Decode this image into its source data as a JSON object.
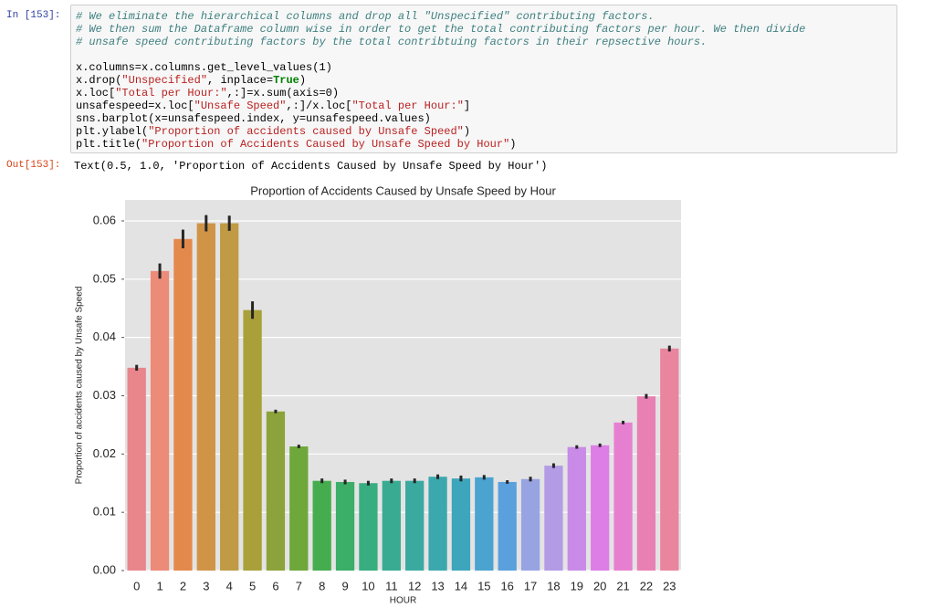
{
  "input_prompt": "In [153]:",
  "comment_lines": [
    "# We eliminate the hierarchical columns and drop all \"Unspecified\" contributing factors.",
    "# We then sum the Dataframe column wise in order to get the total contributing factors per hour. We then divide",
    "# unsafe speed contributing factors by the total contribtuing factors in their repsective hours."
  ],
  "code_lines": [
    [
      "x.columns=x.columns.get_level_values(1)"
    ],
    [
      "x.drop(",
      "\"Unspecified\"",
      ", inplace=",
      "True",
      ")"
    ],
    [
      "x.loc[",
      "\"Total per Hour:\"",
      ",:]=x.sum(axis=0)"
    ],
    [
      "unsafespeed=x.loc[",
      "\"Unsafe Speed\"",
      ",:]/x.loc[",
      "\"Total per Hour:\"",
      "]"
    ],
    [
      "sns.barplot(x=unsafespeed.index, y=unsafespeed.values)"
    ],
    [
      "plt.ylabel(",
      "\"Proportion of accidents caused by Unsafe Speed\"",
      ")"
    ],
    [
      "plt.title(",
      "\"Proportion of Accidents Caused by Unsafe Speed by Hour\"",
      ")"
    ]
  ],
  "output_prompt": "Out[153]:",
  "output_text": "Text(0.5, 1.0, 'Proportion of Accidents Caused by Unsafe Speed by Hour')",
  "chart_data": {
    "type": "bar",
    "title": "Proportion of Accidents Caused by Unsafe Speed by Hour",
    "x_label": "HOUR",
    "y_label": "Proportion of accidents caused by Unsafe Speed",
    "categories": [
      "0",
      "1",
      "2",
      "3",
      "4",
      "5",
      "6",
      "7",
      "8",
      "9",
      "10",
      "11",
      "12",
      "13",
      "14",
      "15",
      "16",
      "17",
      "18",
      "19",
      "20",
      "21",
      "22",
      "23"
    ],
    "values": [
      0.0348,
      0.0514,
      0.0569,
      0.0596,
      0.0596,
      0.0447,
      0.0273,
      0.0213,
      0.0154,
      0.0152,
      0.015,
      0.0154,
      0.0154,
      0.0161,
      0.0158,
      0.016,
      0.0152,
      0.0157,
      0.018,
      0.0212,
      0.0215,
      0.0254,
      0.0299,
      0.0381
    ],
    "errors": [
      0.0005,
      0.0013,
      0.0016,
      0.0014,
      0.0013,
      0.0015,
      0.0003,
      0.0003,
      0.0004,
      0.0004,
      0.0004,
      0.0004,
      0.0004,
      0.0004,
      0.0005,
      0.0004,
      0.0003,
      0.0004,
      0.0004,
      0.0003,
      0.0003,
      0.0003,
      0.0004,
      0.0005
    ],
    "colors": [
      "#e8868b",
      "#ec8b78",
      "#e4894c",
      "#d09447",
      "#c09a45",
      "#a9a03a",
      "#8ca23a",
      "#6ea83b",
      "#46ad4f",
      "#3bae68",
      "#38ad80",
      "#39ab92",
      "#3aa9a0",
      "#3ba8ae",
      "#3ea6bc",
      "#4ba3d0",
      "#5aa0dc",
      "#98a4e2",
      "#b39be6",
      "#c98be7",
      "#dc7ee6",
      "#e77fd0",
      "#e980b4",
      "#e9859e"
    ],
    "error_color": "#262626",
    "ylim": [
      0,
      0.0636
    ],
    "yticks": [
      {
        "value": 0,
        "label": "0.00"
      },
      {
        "value": 0.01,
        "label": "0.01"
      },
      {
        "value": 0.02,
        "label": "0.02"
      },
      {
        "value": 0.03,
        "label": "0.03"
      },
      {
        "value": 0.04,
        "label": "0.04"
      },
      {
        "value": 0.05,
        "label": "0.05"
      },
      {
        "value": 0.06,
        "label": "0.06"
      }
    ],
    "grid": true,
    "background": "#e3e3e3"
  }
}
